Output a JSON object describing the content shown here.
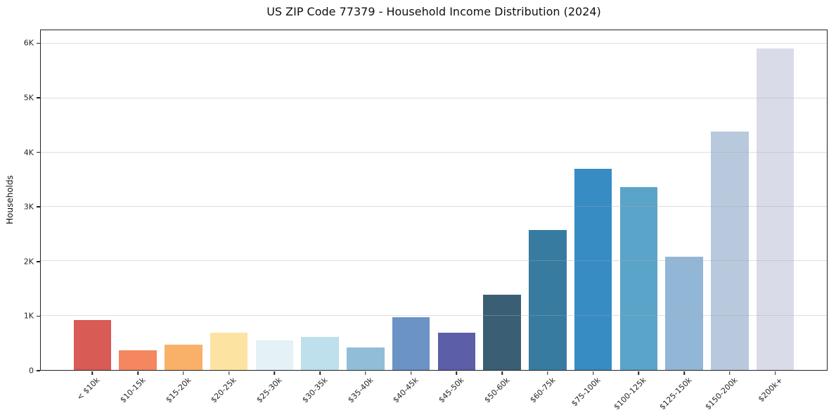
{
  "figure": {
    "title": "US ZIP Code 77379 - Household Income Distribution (2024)",
    "ylabel": "Households"
  },
  "chart_data": {
    "type": "bar",
    "title": "US ZIP Code 77379 - Household Income Distribution (2024)",
    "xlabel": "",
    "ylabel": "Households",
    "categories": [
      "< $10k",
      "$10-15k",
      "$15-20k",
      "$20-25k",
      "$25-30k",
      "$30-35k",
      "$35-40k",
      "$40-45k",
      "$45-50k",
      "$50-60k",
      "$60-75k",
      "$75-100k",
      "$100-125k",
      "$125-150k",
      "$150-200k",
      "$200k+"
    ],
    "values": [
      920,
      360,
      470,
      680,
      540,
      610,
      420,
      970,
      690,
      1390,
      2580,
      3700,
      3360,
      2090,
      4390,
      5920
    ],
    "bar_colors": [
      "#d85b55",
      "#f4875f",
      "#f9b069",
      "#fce3a2",
      "#e4f1f6",
      "#bedfec",
      "#91bdd9",
      "#6b93c6",
      "#5c5ea8",
      "#3a5f74",
      "#387ba0",
      "#368cc3",
      "#5ba4c9",
      "#92b6d5",
      "#b9c9dd",
      "#d9dbe8"
    ],
    "ylim": [
      0,
      6250
    ],
    "yticks": [
      0,
      1000,
      2000,
      3000,
      4000,
      5000,
      6000
    ],
    "ytick_labels": [
      "0",
      "1K",
      "2K",
      "3K",
      "4K",
      "5K",
      "6K"
    ],
    "grid": "horizontal gridlines, light gray, drawn over bars",
    "x_tick_rotation": 45,
    "legend_position": "none",
    "background": "#ffffff"
  }
}
